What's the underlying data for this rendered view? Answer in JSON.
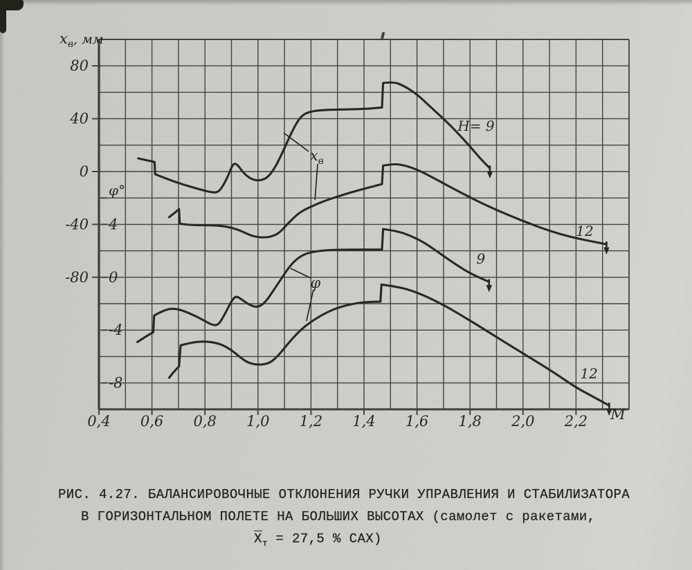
{
  "page": {
    "kind": "scanned technical figure",
    "paper_color": "#d5d4d0",
    "ink_color": "#2a2824",
    "grid_color": "#45423c"
  },
  "chart_data": {
    "type": "line",
    "title": "",
    "grid": true,
    "x_axis": {
      "label": "М",
      "min": 0.4,
      "max": 2.4,
      "grid_step": 0.1,
      "ticks": [
        {
          "value": 0.4,
          "label": "0,4"
        },
        {
          "value": 0.6,
          "label": "0,6"
        },
        {
          "value": 0.8,
          "label": "0,8"
        },
        {
          "value": 1.0,
          "label": "1,0"
        },
        {
          "value": 1.2,
          "label": "1,2"
        },
        {
          "value": 1.4,
          "label": "1,4"
        },
        {
          "value": 1.6,
          "label": "1,6"
        },
        {
          "value": 1.8,
          "label": "1,8"
        },
        {
          "value": 2.0,
          "label": "2,0"
        },
        {
          "value": 2.2,
          "label": "2,2"
        }
      ]
    },
    "y_axis_mm": {
      "title_main": "x",
      "title_sub": "в",
      "title_rest": ", мм",
      "top_value": 100,
      "bottom_value": -180,
      "grid_step": 20,
      "ticks": [
        {
          "value": 80,
          "label": "80"
        },
        {
          "value": 40,
          "label": "40"
        },
        {
          "value": 0,
          "label": "0"
        },
        {
          "value": -40,
          "label": "-40"
        },
        {
          "value": -80,
          "label": "-80"
        }
      ]
    },
    "y_axis_deg": {
      "title": "φ°",
      "title_anchor_mm": -20,
      "ticks": [
        {
          "value": 4,
          "label": "4"
        },
        {
          "value": 0,
          "label": "0"
        },
        {
          "value": -4,
          "label": "-4"
        },
        {
          "value": -8,
          "label": "-8"
        }
      ]
    },
    "series": [
      {
        "id": "xv-h9",
        "name": "xв (Н=9)",
        "axis": "mm",
        "label": "Н= 9",
        "label_pos": [
          1.823,
          34.5
        ],
        "end_arrow": true,
        "segments": [
          [
            [
              0.548,
              10
            ],
            [
              0.578,
              8.6
            ],
            [
              0.61,
              7.2
            ]
          ],
          [
            [
              0.612,
              -2
            ],
            [
              0.655,
              -5.5
            ],
            [
              0.72,
              -10
            ],
            [
              0.78,
              -13.5
            ],
            [
              0.82,
              -15.5
            ],
            [
              0.848,
              -16
            ],
            [
              0.868,
              -11
            ],
            [
              0.89,
              -2
            ],
            [
              0.907,
              6.5
            ],
            [
              0.924,
              5
            ],
            [
              0.945,
              -1
            ],
            [
              0.972,
              -5.5
            ],
            [
              1.0,
              -7
            ],
            [
              1.03,
              -5.5
            ],
            [
              1.055,
              0
            ],
            [
              1.08,
              9
            ],
            [
              1.105,
              20
            ],
            [
              1.13,
              31
            ],
            [
              1.155,
              40
            ],
            [
              1.18,
              44.5
            ],
            [
              1.23,
              46.5
            ],
            [
              1.32,
              47
            ],
            [
              1.42,
              47.5
            ],
            [
              1.468,
              48.5
            ]
          ],
          [
            [
              1.472,
              67
            ],
            [
              1.51,
              68
            ],
            [
              1.55,
              65
            ],
            [
              1.6,
              58.5
            ],
            [
              1.65,
              49
            ],
            [
              1.7,
              40
            ],
            [
              1.75,
              30
            ],
            [
              1.8,
              19
            ],
            [
              1.845,
              8.5
            ],
            [
              1.875,
              2.5
            ]
          ]
        ]
      },
      {
        "id": "xv-h12",
        "name": "xв (Н=12)",
        "axis": "mm",
        "label": "12",
        "label_pos": [
          2.233,
          -45
        ],
        "end_arrow": true,
        "segments": [
          [
            [
              0.665,
              -34.5
            ],
            [
              0.684,
              -31.5
            ],
            [
              0.702,
              -28.5
            ]
          ],
          [
            [
              0.705,
              -39.5
            ],
            [
              0.74,
              -40.5
            ],
            [
              0.8,
              -40.5
            ],
            [
              0.86,
              -41
            ],
            [
              0.9,
              -42.5
            ],
            [
              0.932,
              -44.5
            ],
            [
              0.957,
              -47
            ],
            [
              0.99,
              -49.5
            ],
            [
              1.03,
              -50
            ],
            [
              1.062,
              -48.5
            ],
            [
              1.085,
              -45.5
            ],
            [
              1.105,
              -41
            ],
            [
              1.132,
              -35.5
            ],
            [
              1.16,
              -30.5
            ],
            [
              1.205,
              -26
            ],
            [
              1.26,
              -21.5
            ],
            [
              1.33,
              -17
            ],
            [
              1.4,
              -13
            ],
            [
              1.468,
              -9.5
            ]
          ],
          [
            [
              1.472,
              4.5
            ],
            [
              1.515,
              6
            ],
            [
              1.557,
              4.5
            ],
            [
              1.6,
              1.5
            ],
            [
              1.65,
              -3.5
            ],
            [
              1.71,
              -10
            ],
            [
              1.78,
              -17.5
            ],
            [
              1.86,
              -25.5
            ],
            [
              1.94,
              -32.5
            ],
            [
              2.02,
              -39
            ],
            [
              2.1,
              -45
            ],
            [
              2.18,
              -49.5
            ],
            [
              2.25,
              -52.5
            ],
            [
              2.315,
              -55
            ]
          ]
        ]
      },
      {
        "id": "phi-h9",
        "name": "φ (Н=9)",
        "axis": "deg",
        "label": "9",
        "label_pos": [
          1.841,
          1.4
        ],
        "end_arrow": true,
        "segments": [
          [
            [
              0.545,
              -4.9
            ],
            [
              0.575,
              -4.5
            ],
            [
              0.605,
              -4.15
            ]
          ],
          [
            [
              0.608,
              -2.9
            ],
            [
              0.648,
              -2.45
            ],
            [
              0.69,
              -2.35
            ],
            [
              0.74,
              -2.7
            ],
            [
              0.79,
              -3.2
            ],
            [
              0.825,
              -3.6
            ],
            [
              0.85,
              -3.65
            ],
            [
              0.875,
              -2.8
            ],
            [
              0.9,
              -1.8
            ],
            [
              0.917,
              -1.4
            ],
            [
              0.94,
              -1.7
            ],
            [
              0.968,
              -2.1
            ],
            [
              1.0,
              -2.3
            ],
            [
              1.03,
              -1.85
            ],
            [
              1.06,
              -0.95
            ],
            [
              1.09,
              -0.05
            ],
            [
              1.12,
              0.85
            ],
            [
              1.15,
              1.45
            ],
            [
              1.185,
              1.85
            ],
            [
              1.25,
              2.05
            ],
            [
              1.35,
              2.1
            ],
            [
              1.468,
              2.1
            ]
          ],
          [
            [
              1.472,
              3.65
            ],
            [
              1.525,
              3.5
            ],
            [
              1.575,
              3.15
            ],
            [
              1.625,
              2.65
            ],
            [
              1.68,
              1.9
            ],
            [
              1.74,
              1.05
            ],
            [
              1.8,
              0.3
            ],
            [
              1.85,
              -0.15
            ],
            [
              1.872,
              -0.35
            ]
          ]
        ]
      },
      {
        "id": "phi-h12",
        "name": "φ (Н=12)",
        "axis": "deg",
        "label": "12",
        "label_pos": [
          2.249,
          -7.3
        ],
        "end_arrow": true,
        "segments": [
          [
            [
              0.665,
              -7.6
            ],
            [
              0.684,
              -7.1
            ],
            [
              0.702,
              -6.75
            ]
          ],
          [
            [
              0.708,
              -5.15
            ],
            [
              0.755,
              -4.9
            ],
            [
              0.81,
              -4.85
            ],
            [
              0.86,
              -5.05
            ],
            [
              0.9,
              -5.5
            ],
            [
              0.935,
              -6.1
            ],
            [
              0.965,
              -6.5
            ],
            [
              1.005,
              -6.65
            ],
            [
              1.045,
              -6.5
            ],
            [
              1.078,
              -5.9
            ],
            [
              1.11,
              -5.1
            ],
            [
              1.15,
              -4.2
            ],
            [
              1.19,
              -3.5
            ],
            [
              1.245,
              -2.8
            ],
            [
              1.3,
              -2.3
            ],
            [
              1.37,
              -1.95
            ],
            [
              1.43,
              -1.85
            ],
            [
              1.462,
              -1.85
            ]
          ],
          [
            [
              1.466,
              -0.55
            ],
            [
              1.52,
              -0.7
            ],
            [
              1.58,
              -1.0
            ],
            [
              1.64,
              -1.5
            ],
            [
              1.71,
              -2.2
            ],
            [
              1.79,
              -3.15
            ],
            [
              1.87,
              -4.15
            ],
            [
              1.95,
              -5.15
            ],
            [
              2.04,
              -6.25
            ],
            [
              2.12,
              -7.25
            ],
            [
              2.2,
              -8.35
            ],
            [
              2.27,
              -9.1
            ],
            [
              2.325,
              -9.7
            ]
          ]
        ]
      }
    ],
    "annotations": [
      {
        "id": "xv",
        "main": "x",
        "sub": "в",
        "axis": "mm",
        "pos": [
          1.222,
          12
        ],
        "leaders": [
          [
            [
              1.097,
              29.3
            ],
            [
              1.191,
              15.2
            ]
          ],
          [
            [
              1.225,
              5.8
            ],
            [
              1.215,
              -21.5
            ]
          ]
        ]
      },
      {
        "id": "phi",
        "main": "φ",
        "sub": "",
        "axis": "deg",
        "pos": [
          1.217,
          -0.43
        ],
        "leaders": [
          [
            [
              1.123,
              0.67
            ],
            [
              1.199,
              -0.06
            ]
          ],
          [
            [
              1.209,
              -0.95
            ],
            [
              1.183,
              -3.31
            ]
          ]
        ]
      }
    ]
  },
  "caption": {
    "line1": "РИС. 4.27. БАЛАНСИРОВОЧНЫЕ ОТКЛОНЕНИЯ РУЧКИ УПРАВЛЕНИЯ И СТАБИЛИЗАТОРА",
    "line2": "В ГОРИЗОНТАЛЬНОМ ПОЛЕТЕ НА БОЛЬШИХ ВЫСОТАХ (самолет с ракетами,",
    "line3_main": "Х",
    "line3_sub": "т",
    "line3_rest": " = 27,5 % САХ)"
  }
}
